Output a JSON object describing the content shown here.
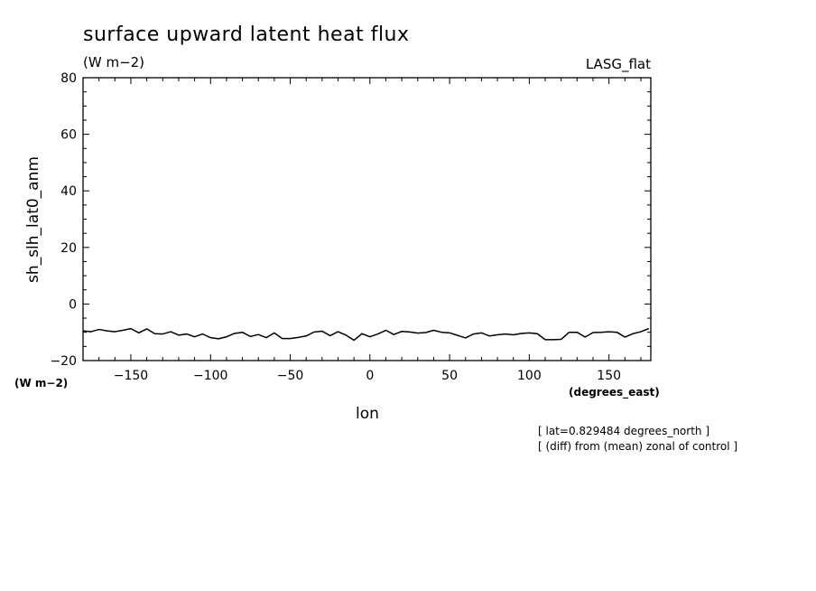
{
  "header": {
    "title": "surface upward latent heat flux",
    "units": "(W m−2)",
    "dataset": "LASG_flat"
  },
  "footer": {
    "lat_note": "[ lat=0.829484 degrees_north ]",
    "diff_note": "[ (diff) from (mean) zonal of control ]"
  },
  "colors": {
    "line": "#000000",
    "axes": "#000000",
    "background": "#ffffff"
  },
  "chart_data": {
    "type": "line",
    "title": "surface upward latent heat flux",
    "xlabel": "lon",
    "xunits": "(degrees_east)",
    "ylabel": "sh_slh_lat0_anm",
    "yunits": "(W m−2)",
    "xlim": [
      -180,
      176.25
    ],
    "ylim": [
      -20,
      80
    ],
    "xticks": [
      -150,
      -100,
      -50,
      0,
      50,
      100,
      150
    ],
    "xtick_labels": [
      "−150",
      "−100",
      "−50",
      "0",
      "50",
      "100",
      "150"
    ],
    "yticks": [
      -20,
      0,
      20,
      40,
      60,
      80
    ],
    "ytick_labels": [
      "−20",
      "0",
      "20",
      "40",
      "60",
      "80"
    ],
    "grid": false,
    "series": [
      {
        "x": [
          -180,
          -175,
          -170,
          -165,
          -160,
          -155,
          -150,
          -145,
          -140,
          -135,
          -130,
          -125,
          -120,
          -115,
          -110,
          -105,
          -100,
          -95,
          -90,
          -85,
          -80,
          -75,
          -70,
          -65,
          -60,
          -55,
          -50,
          -45,
          -40,
          -35,
          -30,
          -25,
          -20,
          -15,
          -10,
          -5,
          0,
          5,
          10,
          15,
          20,
          25,
          30,
          35,
          40,
          45,
          50,
          55,
          60,
          65,
          70,
          75,
          80,
          85,
          90,
          95,
          100,
          105,
          110,
          115,
          120,
          125,
          130,
          135,
          140,
          145,
          150,
          155,
          160,
          165,
          170,
          175
        ],
        "y": [
          -9.5,
          -9.8,
          -9.0,
          -9.5,
          -9.8,
          -9.3,
          -8.7,
          -10.2,
          -8.8,
          -10.5,
          -10.6,
          -9.8,
          -11.0,
          -10.6,
          -11.6,
          -10.6,
          -11.9,
          -12.3,
          -11.6,
          -10.4,
          -10.0,
          -11.5,
          -10.8,
          -11.9,
          -10.2,
          -12.2,
          -12.2,
          -11.8,
          -11.3,
          -9.9,
          -9.6,
          -11.2,
          -9.8,
          -11.0,
          -12.8,
          -10.5,
          -11.6,
          -10.6,
          -9.3,
          -10.8,
          -9.7,
          -9.9,
          -10.3,
          -10.1,
          -9.3,
          -10.0,
          -10.2,
          -11.1,
          -12.0,
          -10.6,
          -10.2,
          -11.3,
          -10.9,
          -10.6,
          -10.9,
          -10.4,
          -10.2,
          -10.5,
          -12.6,
          -12.6,
          -12.5,
          -10.0,
          -10.0,
          -11.7,
          -10.1,
          -10.0,
          -9.8,
          -10.0,
          -11.7,
          -10.5,
          -9.8,
          -8.7
        ]
      }
    ]
  }
}
